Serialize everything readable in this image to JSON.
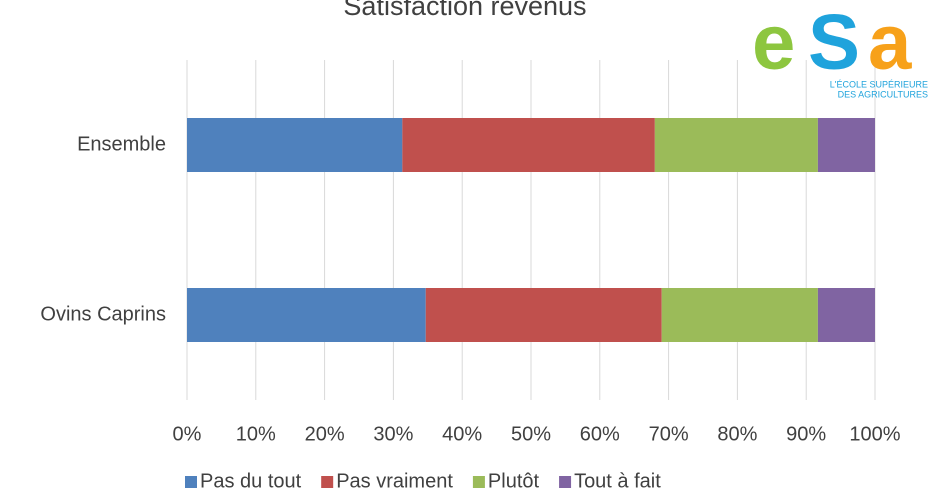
{
  "chart_data": {
    "type": "stacked_barh",
    "title": "Satisfaction revenus",
    "categories": [
      "Ensemble",
      "Ovins Caprins"
    ],
    "series": [
      {
        "name": "Pas du tout",
        "color": "#4f81bd",
        "values": [
          31.3,
          34.7
        ]
      },
      {
        "name": "Pas vraiment",
        "color": "#c0504d",
        "values": [
          36.7,
          34.3
        ]
      },
      {
        "name": "Plutôt",
        "color": "#9bbb59",
        "values": [
          23.7,
          22.7
        ]
      },
      {
        "name": "Tout à fait",
        "color": "#8064a2",
        "values": [
          8.3,
          8.3
        ]
      }
    ],
    "xlim": [
      0,
      100
    ],
    "xticks": [
      {
        "value": 0,
        "label": "0%"
      },
      {
        "value": 10,
        "label": "10%"
      },
      {
        "value": 20,
        "label": "20%"
      },
      {
        "value": 30,
        "label": "30%"
      },
      {
        "value": 40,
        "label": "40%"
      },
      {
        "value": 50,
        "label": "50%"
      },
      {
        "value": 60,
        "label": "60%"
      },
      {
        "value": 70,
        "label": "70%"
      },
      {
        "value": 80,
        "label": "80%"
      },
      {
        "value": 90,
        "label": "90%"
      },
      {
        "value": 100,
        "label": "100%"
      }
    ],
    "grid": true,
    "legend": "bottom"
  },
  "logo": {
    "letters": [
      "e",
      "S",
      "a"
    ],
    "colors": [
      "#8dc63f",
      "#1fa3dc",
      "#f7a11a"
    ],
    "lines": [
      "L'ÉCOLE SUPÉRIEURE",
      "DES AGRICULTURES"
    ]
  }
}
